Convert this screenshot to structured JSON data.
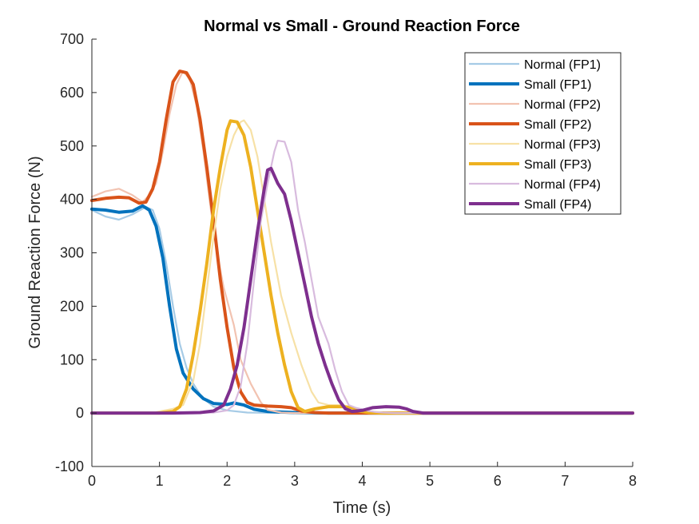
{
  "chart_data": {
    "type": "line",
    "title": "Normal vs Small - Ground Reaction Force",
    "xlabel": "Time (s)",
    "ylabel": "Ground Reaction Force (N)",
    "xlim": [
      0,
      8
    ],
    "ylim": [
      -100,
      700
    ],
    "xticks": [
      0,
      1,
      2,
      3,
      4,
      5,
      6,
      7,
      8
    ],
    "yticks": [
      -100,
      0,
      100,
      200,
      300,
      400,
      500,
      600,
      700
    ],
    "grid": false,
    "legend_position": "top-right",
    "series": [
      {
        "name": "Normal (FP1)",
        "color": "#a6cbe6",
        "weight": "thin",
        "points": [
          [
            0,
            380
          ],
          [
            0.2,
            368
          ],
          [
            0.4,
            362
          ],
          [
            0.6,
            372
          ],
          [
            0.8,
            386
          ],
          [
            0.9,
            380
          ],
          [
            1.0,
            345
          ],
          [
            1.1,
            280
          ],
          [
            1.2,
            200
          ],
          [
            1.3,
            130
          ],
          [
            1.4,
            85
          ],
          [
            1.5,
            55
          ],
          [
            1.6,
            35
          ],
          [
            1.7,
            22
          ],
          [
            1.8,
            12
          ],
          [
            2.0,
            5
          ],
          [
            2.3,
            1
          ],
          [
            3.0,
            0
          ],
          [
            8,
            0
          ]
        ]
      },
      {
        "name": "Small (FP1)",
        "color": "#0072bd",
        "weight": "thick",
        "points": [
          [
            0,
            382
          ],
          [
            0.2,
            380
          ],
          [
            0.4,
            376
          ],
          [
            0.6,
            378
          ],
          [
            0.75,
            388
          ],
          [
            0.85,
            380
          ],
          [
            0.95,
            350
          ],
          [
            1.05,
            290
          ],
          [
            1.15,
            200
          ],
          [
            1.25,
            120
          ],
          [
            1.35,
            75
          ],
          [
            1.5,
            45
          ],
          [
            1.65,
            27
          ],
          [
            1.8,
            18
          ],
          [
            2.0,
            16
          ],
          [
            2.1,
            19
          ],
          [
            2.25,
            15
          ],
          [
            2.4,
            7
          ],
          [
            2.6,
            3
          ],
          [
            3.0,
            1
          ],
          [
            3.5,
            0
          ],
          [
            8,
            0
          ]
        ]
      },
      {
        "name": "Normal (FP2)",
        "color": "#f2c3b1",
        "weight": "thin",
        "points": [
          [
            0,
            405
          ],
          [
            0.2,
            415
          ],
          [
            0.4,
            420
          ],
          [
            0.6,
            408
          ],
          [
            0.75,
            395
          ],
          [
            0.85,
            408
          ],
          [
            0.95,
            430
          ],
          [
            1.05,
            490
          ],
          [
            1.15,
            560
          ],
          [
            1.25,
            615
          ],
          [
            1.35,
            640
          ],
          [
            1.45,
            625
          ],
          [
            1.55,
            575
          ],
          [
            1.65,
            490
          ],
          [
            1.75,
            390
          ],
          [
            1.85,
            300
          ],
          [
            1.95,
            235
          ],
          [
            2.1,
            165
          ],
          [
            2.2,
            100
          ],
          [
            2.35,
            55
          ],
          [
            2.5,
            20
          ],
          [
            2.6,
            6
          ],
          [
            2.8,
            1
          ],
          [
            3.0,
            0
          ],
          [
            8,
            0
          ]
        ]
      },
      {
        "name": "Small (FP2)",
        "color": "#d95319",
        "weight": "thick",
        "points": [
          [
            0,
            398
          ],
          [
            0.2,
            402
          ],
          [
            0.4,
            404
          ],
          [
            0.55,
            403
          ],
          [
            0.7,
            393
          ],
          [
            0.8,
            395
          ],
          [
            0.9,
            420
          ],
          [
            1.0,
            470
          ],
          [
            1.1,
            550
          ],
          [
            1.2,
            620
          ],
          [
            1.3,
            640
          ],
          [
            1.4,
            637
          ],
          [
            1.5,
            615
          ],
          [
            1.6,
            550
          ],
          [
            1.7,
            460
          ],
          [
            1.8,
            360
          ],
          [
            1.9,
            250
          ],
          [
            2.0,
            160
          ],
          [
            2.1,
            85
          ],
          [
            2.2,
            40
          ],
          [
            2.3,
            20
          ],
          [
            2.4,
            15
          ],
          [
            2.6,
            13
          ],
          [
            2.8,
            12
          ],
          [
            2.95,
            10
          ],
          [
            3.1,
            4
          ],
          [
            3.3,
            1
          ],
          [
            3.5,
            0
          ],
          [
            8,
            0
          ]
        ]
      },
      {
        "name": "Normal (FP3)",
        "color": "#f7e1a6",
        "weight": "thin",
        "points": [
          [
            0,
            0
          ],
          [
            0.9,
            0
          ],
          [
            1.0,
            3
          ],
          [
            1.2,
            8
          ],
          [
            1.35,
            15
          ],
          [
            1.5,
            60
          ],
          [
            1.6,
            130
          ],
          [
            1.7,
            230
          ],
          [
            1.8,
            330
          ],
          [
            1.9,
            420
          ],
          [
            2.0,
            480
          ],
          [
            2.1,
            520
          ],
          [
            2.2,
            545
          ],
          [
            2.25,
            548
          ],
          [
            2.35,
            530
          ],
          [
            2.45,
            480
          ],
          [
            2.55,
            400
          ],
          [
            2.65,
            320
          ],
          [
            2.8,
            220
          ],
          [
            2.95,
            150
          ],
          [
            3.1,
            90
          ],
          [
            3.25,
            40
          ],
          [
            3.35,
            20
          ],
          [
            3.5,
            15
          ],
          [
            3.7,
            15
          ],
          [
            3.8,
            12
          ],
          [
            3.9,
            5
          ],
          [
            4.1,
            1
          ],
          [
            4.3,
            0
          ],
          [
            8,
            0
          ]
        ]
      },
      {
        "name": "Small (FP3)",
        "color": "#edb120",
        "weight": "thick",
        "points": [
          [
            0,
            0
          ],
          [
            1.0,
            0
          ],
          [
            1.2,
            3
          ],
          [
            1.3,
            12
          ],
          [
            1.4,
            45
          ],
          [
            1.5,
            110
          ],
          [
            1.6,
            190
          ],
          [
            1.7,
            280
          ],
          [
            1.8,
            380
          ],
          [
            1.9,
            460
          ],
          [
            2.0,
            530
          ],
          [
            2.05,
            547
          ],
          [
            2.15,
            545
          ],
          [
            2.25,
            520
          ],
          [
            2.35,
            460
          ],
          [
            2.45,
            380
          ],
          [
            2.55,
            300
          ],
          [
            2.65,
            220
          ],
          [
            2.75,
            150
          ],
          [
            2.85,
            90
          ],
          [
            2.95,
            40
          ],
          [
            3.05,
            10
          ],
          [
            3.15,
            3
          ],
          [
            3.3,
            8
          ],
          [
            3.5,
            12
          ],
          [
            3.7,
            12
          ],
          [
            3.85,
            10
          ],
          [
            3.95,
            4
          ],
          [
            4.1,
            1
          ],
          [
            4.3,
            0
          ],
          [
            8,
            0
          ]
        ]
      },
      {
        "name": "Normal (FP4)",
        "color": "#d8bbde",
        "weight": "thin",
        "points": [
          [
            0,
            0
          ],
          [
            1.5,
            0
          ],
          [
            1.8,
            1
          ],
          [
            2.0,
            5
          ],
          [
            2.1,
            15
          ],
          [
            2.2,
            50
          ],
          [
            2.3,
            130
          ],
          [
            2.4,
            250
          ],
          [
            2.5,
            360
          ],
          [
            2.6,
            430
          ],
          [
            2.7,
            490
          ],
          [
            2.75,
            510
          ],
          [
            2.85,
            508
          ],
          [
            2.95,
            470
          ],
          [
            3.05,
            380
          ],
          [
            3.15,
            320
          ],
          [
            3.25,
            250
          ],
          [
            3.35,
            180
          ],
          [
            3.5,
            130
          ],
          [
            3.6,
            80
          ],
          [
            3.7,
            40
          ],
          [
            3.8,
            15
          ],
          [
            3.9,
            10
          ],
          [
            4.0,
            7
          ],
          [
            4.1,
            4
          ],
          [
            4.2,
            2
          ],
          [
            4.3,
            1
          ],
          [
            4.5,
            0
          ],
          [
            8,
            0
          ]
        ]
      },
      {
        "name": "Small (FP4)",
        "color": "#7e2f8e",
        "weight": "thick",
        "points": [
          [
            0,
            0
          ],
          [
            1.2,
            0
          ],
          [
            1.6,
            1
          ],
          [
            1.8,
            4
          ],
          [
            1.95,
            15
          ],
          [
            2.05,
            45
          ],
          [
            2.15,
            90
          ],
          [
            2.25,
            160
          ],
          [
            2.35,
            250
          ],
          [
            2.45,
            340
          ],
          [
            2.55,
            420
          ],
          [
            2.6,
            455
          ],
          [
            2.65,
            458
          ],
          [
            2.75,
            430
          ],
          [
            2.85,
            410
          ],
          [
            2.95,
            360
          ],
          [
            3.05,
            300
          ],
          [
            3.15,
            240
          ],
          [
            3.25,
            180
          ],
          [
            3.35,
            130
          ],
          [
            3.45,
            90
          ],
          [
            3.55,
            55
          ],
          [
            3.65,
            25
          ],
          [
            3.75,
            8
          ],
          [
            3.85,
            3
          ],
          [
            4.0,
            5
          ],
          [
            4.15,
            10
          ],
          [
            4.35,
            12
          ],
          [
            4.55,
            11
          ],
          [
            4.65,
            8
          ],
          [
            4.75,
            3
          ],
          [
            4.9,
            0
          ],
          [
            8,
            0
          ]
        ]
      }
    ]
  }
}
